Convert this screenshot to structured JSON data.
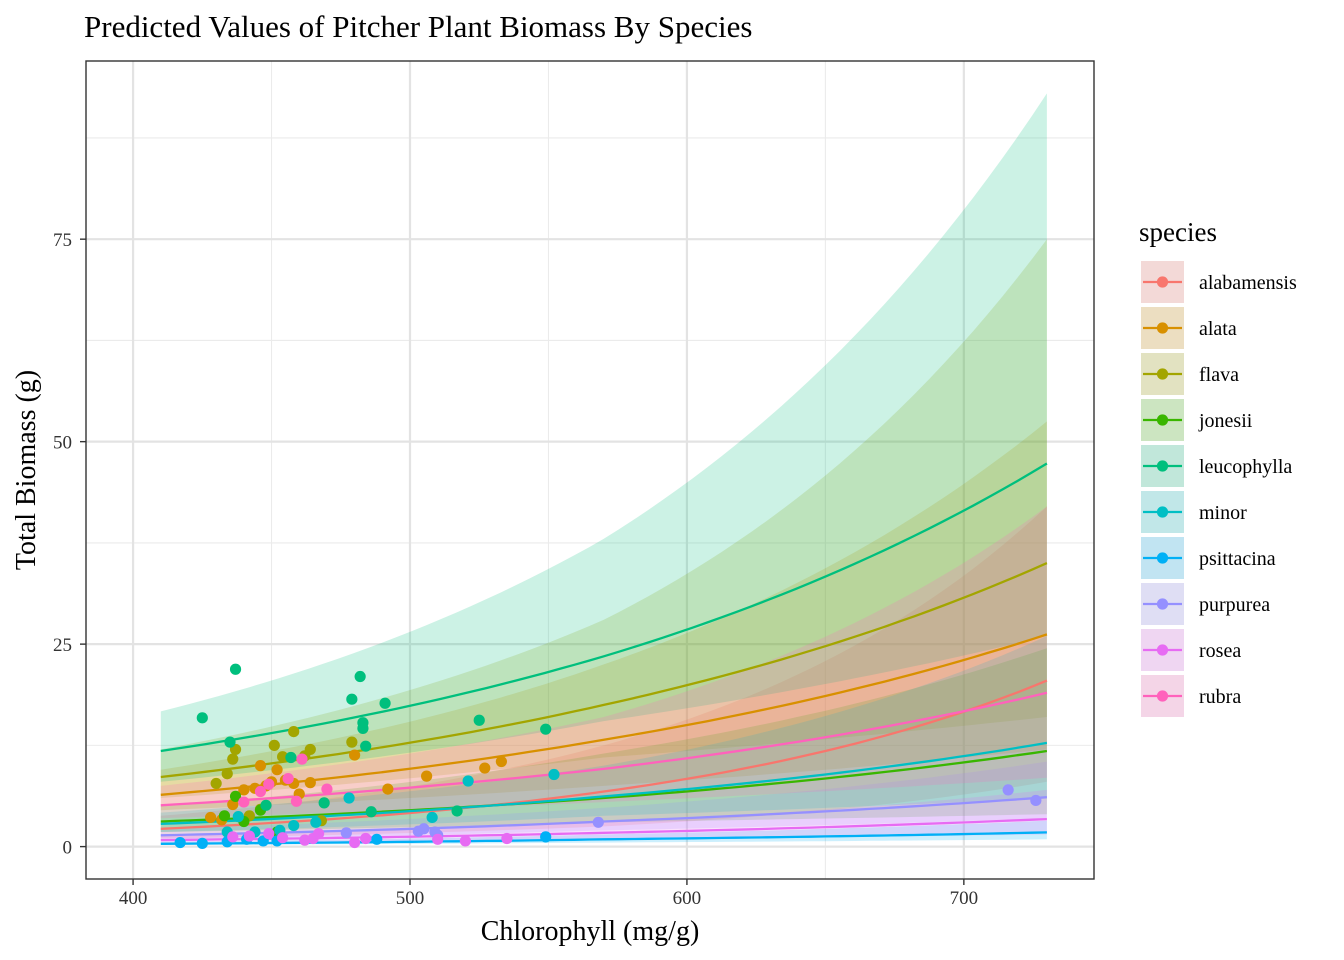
{
  "chart_data": {
    "type": "line",
    "title": "Predicted Values of Pitcher Plant Biomass By Species",
    "xlabel": "Chlorophyll (mg/g)",
    "ylabel": "Total Biomass (g)",
    "xlim": [
      383,
      747
    ],
    "ylim": [
      -4,
      97
    ],
    "x_ticks": [
      400,
      500,
      600,
      700
    ],
    "y_ticks": [
      0,
      25,
      50,
      75
    ],
    "x_minor_ticks": [
      450,
      550,
      650
    ],
    "y_minor_ticks": [
      12.5,
      37.5,
      62.5,
      87.5
    ],
    "grid": true,
    "legend": {
      "title": "species",
      "position": "right"
    },
    "band_opacity": 0.2,
    "series": [
      {
        "name": "alabamensis",
        "color": "#F8766D",
        "line_x": [
          410,
          570,
          730
        ],
        "line_y": [
          2.2,
          6.8,
          20.5
        ],
        "band_lower": [
          1.0,
          2.5,
          8.0
        ],
        "band_upper": [
          3.8,
          12.5,
          42.0
        ],
        "points": []
      },
      {
        "name": "alata",
        "color": "#D89000",
        "line_x": [
          410,
          570,
          730
        ],
        "line_y": [
          6.4,
          13.2,
          26.2
        ],
        "band_lower": [
          4.5,
          7.5,
          12.0
        ],
        "band_upper": [
          9.5,
          22.5,
          52.5
        ],
        "points": [
          [
            428,
            3.6
          ],
          [
            432,
            3.3
          ],
          [
            436,
            5.2
          ],
          [
            440,
            7.0
          ],
          [
            444,
            7.2
          ],
          [
            446,
            10.0
          ],
          [
            448,
            7.5
          ],
          [
            450,
            8.0
          ],
          [
            452,
            9.5
          ],
          [
            455,
            8.2
          ],
          [
            458,
            7.8
          ],
          [
            460,
            6.5
          ],
          [
            464,
            7.9
          ],
          [
            480,
            11.3
          ],
          [
            492,
            7.1
          ],
          [
            506,
            8.7
          ],
          [
            527,
            9.7
          ],
          [
            533,
            10.5
          ]
        ]
      },
      {
        "name": "flava",
        "color": "#A3A500",
        "line_x": [
          410,
          570,
          730
        ],
        "line_y": [
          8.6,
          17.5,
          35.0
        ],
        "band_lower": [
          6.0,
          11.0,
          16.0
        ],
        "band_upper": [
          12.0,
          28.0,
          75.0
        ],
        "points": [
          [
            430,
            7.8
          ],
          [
            434,
            9.0
          ],
          [
            436,
            10.8
          ],
          [
            437,
            12.0
          ],
          [
            442,
            3.8
          ],
          [
            446,
            4.6
          ],
          [
            451,
            12.5
          ],
          [
            454,
            11.1
          ],
          [
            458,
            14.2
          ],
          [
            462,
            11.2
          ],
          [
            464,
            12.0
          ],
          [
            468,
            3.2
          ],
          [
            479,
            12.9
          ]
        ]
      },
      {
        "name": "jonesii",
        "color": "#39B600",
        "line_x": [
          410,
          570,
          730
        ],
        "line_y": [
          3.1,
          6.0,
          11.8
        ],
        "band_lower": [
          1.8,
          3.0,
          4.0
        ],
        "band_upper": [
          5.0,
          11.5,
          24.5
        ],
        "points": [
          [
            433,
            3.8
          ],
          [
            437,
            6.2
          ],
          [
            440,
            3.1
          ],
          [
            446,
            4.5
          ],
          [
            452,
            1.8
          ]
        ]
      },
      {
        "name": "leucophylla",
        "color": "#00BF7D",
        "line_x": [
          410,
          570,
          730
        ],
        "line_y": [
          11.8,
          23.5,
          47.3
        ],
        "band_lower": [
          8.0,
          15.5,
          26.0
        ],
        "band_upper": [
          16.7,
          38.0,
          93.0
        ],
        "points": [
          [
            425,
            15.9
          ],
          [
            435,
            12.9
          ],
          [
            437,
            21.9
          ],
          [
            448,
            5.1
          ],
          [
            457,
            11.0
          ],
          [
            469,
            5.4
          ],
          [
            479,
            18.2
          ],
          [
            482,
            21.0
          ],
          [
            483,
            15.3
          ],
          [
            483,
            14.6
          ],
          [
            484,
            12.4
          ],
          [
            486,
            4.3
          ],
          [
            491,
            17.7
          ],
          [
            517,
            4.4
          ],
          [
            525,
            15.6
          ],
          [
            549,
            14.5
          ]
        ]
      },
      {
        "name": "minor",
        "color": "#00BFC4",
        "line_x": [
          410,
          570,
          730
        ],
        "line_y": [
          2.8,
          6.2,
          12.8
        ],
        "band_lower": [
          1.8,
          3.8,
          6.0
        ],
        "band_upper": [
          4.2,
          10.0,
          26.0
        ],
        "points": [
          [
            434,
            1.8
          ],
          [
            438,
            3.7
          ],
          [
            444,
            1.8
          ],
          [
            453,
            2.0
          ],
          [
            458,
            2.6
          ],
          [
            466,
            3.0
          ],
          [
            478,
            6.0
          ],
          [
            508,
            3.6
          ],
          [
            521,
            8.1
          ],
          [
            552,
            8.9
          ]
        ]
      },
      {
        "name": "psittacina",
        "color": "#00B0F6",
        "line_x": [
          410,
          570,
          730
        ],
        "line_y": [
          0.35,
          0.9,
          1.75
        ],
        "band_lower": [
          0.2,
          0.5,
          0.9
        ],
        "band_upper": [
          0.6,
          1.5,
          3.2
        ],
        "points": [
          [
            417,
            0.5
          ],
          [
            425,
            0.4
          ],
          [
            434,
            0.6
          ],
          [
            441,
            0.9
          ],
          [
            447,
            0.7
          ],
          [
            452,
            0.7
          ],
          [
            488,
            0.9
          ],
          [
            549,
            1.2
          ]
        ]
      },
      {
        "name": "purpurea",
        "color": "#9590FF",
        "line_x": [
          410,
          570,
          730
        ],
        "line_y": [
          1.4,
          3.1,
          6.1
        ],
        "band_lower": [
          0.9,
          2.0,
          3.5
        ],
        "band_upper": [
          2.2,
          4.8,
          10.5
        ],
        "points": [
          [
            477,
            1.7
          ],
          [
            503,
            1.9
          ],
          [
            505,
            2.2
          ],
          [
            509,
            1.8
          ],
          [
            510,
            1.4
          ],
          [
            568,
            3.0
          ],
          [
            716,
            7.0
          ],
          [
            726,
            5.7
          ]
        ]
      },
      {
        "name": "rosea",
        "color": "#E76BF3",
        "line_x": [
          410,
          570,
          730
        ],
        "line_y": [
          0.8,
          1.7,
          3.4
        ],
        "band_lower": [
          0.4,
          0.9,
          1.5
        ],
        "band_upper": [
          1.4,
          3.0,
          7.0
        ],
        "points": [
          [
            436,
            1.2
          ],
          [
            442,
            1.3
          ],
          [
            449,
            1.6
          ],
          [
            454,
            1.1
          ],
          [
            462,
            0.8
          ],
          [
            465,
            1.0
          ],
          [
            467,
            1.6
          ],
          [
            480,
            0.5
          ],
          [
            484,
            1.0
          ],
          [
            510,
            0.9
          ],
          [
            520,
            0.7
          ],
          [
            535,
            1.0
          ]
        ]
      },
      {
        "name": "rubra",
        "color": "#FF62BC",
        "line_x": [
          410,
          570,
          730
        ],
        "line_y": [
          5.1,
          9.6,
          19.0
        ],
        "band_lower": [
          3.5,
          5.5,
          8.5
        ],
        "band_upper": [
          7.5,
          16.0,
          42.0
        ],
        "points": [
          [
            440,
            5.5
          ],
          [
            446,
            6.8
          ],
          [
            449,
            7.7
          ],
          [
            456,
            8.4
          ],
          [
            459,
            5.6
          ],
          [
            461,
            10.8
          ],
          [
            470,
            7.1
          ]
        ]
      }
    ]
  }
}
